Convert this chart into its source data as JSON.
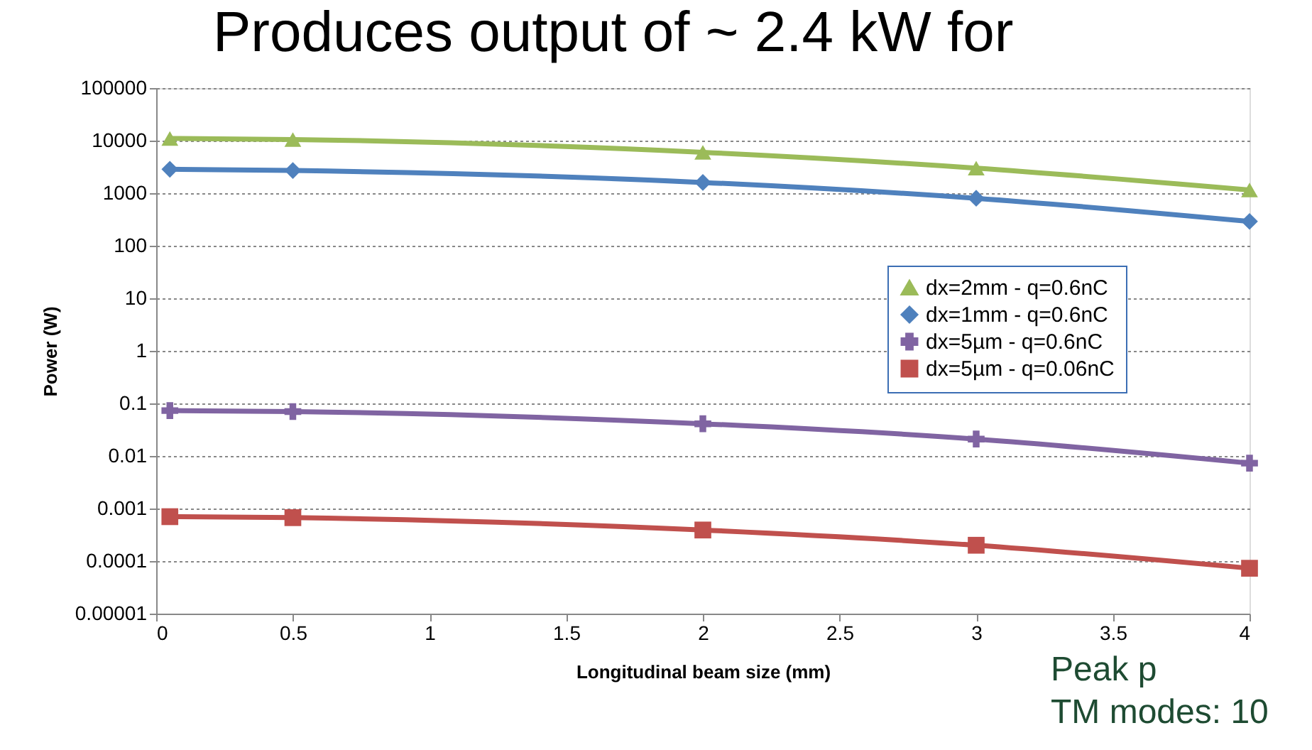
{
  "chart_data": {
    "type": "line",
    "title": "Produces output of ~ 2.4 kW for",
    "xlabel": "Longitudinal beam size (mm)",
    "ylabel": "Power (W)",
    "annotations": [
      "Peak p",
      "TM modes: 10"
    ],
    "x": [
      0.05,
      0.5,
      2,
      3,
      4
    ],
    "series": [
      {
        "name": "dx=2mm - q=0.6nC",
        "color": "#9bbb59",
        "marker": "triangle",
        "values": [
          11000,
          10500,
          6000,
          3000,
          1150
        ]
      },
      {
        "name": "dx=1mm - q=0.6nC",
        "color": "#4f81bd",
        "marker": "diamond",
        "values": [
          2850,
          2700,
          1600,
          800,
          290
        ]
      },
      {
        "name": "dx=5µm - q=0.6nC",
        "color": "#8064a2",
        "marker": "cross",
        "values": [
          0.073,
          0.07,
          0.041,
          0.021,
          0.0073
        ]
      },
      {
        "name": "dx=5µm - q=0.06nC",
        "color": "#c0504d",
        "marker": "square",
        "values": [
          0.0007,
          0.00067,
          0.00039,
          0.0002,
          7.3e-05
        ]
      }
    ],
    "log": "y",
    "xlim": [
      0,
      4
    ],
    "xticks": [
      0,
      0.5,
      1,
      1.5,
      2,
      2.5,
      3,
      3.5,
      4
    ],
    "ylim": [
      1e-05,
      100000
    ],
    "yticks": [
      {
        "value": 1e-05,
        "label": "0.00001"
      },
      {
        "value": 0.0001,
        "label": "0.0001"
      },
      {
        "value": 0.001,
        "label": "0.001"
      },
      {
        "value": 0.01,
        "label": "0.01"
      },
      {
        "value": 0.1,
        "label": "0.1"
      },
      1,
      10,
      100,
      1000,
      10000,
      100000
    ],
    "grid": "y",
    "legend": "right",
    "line_style": "solid"
  }
}
